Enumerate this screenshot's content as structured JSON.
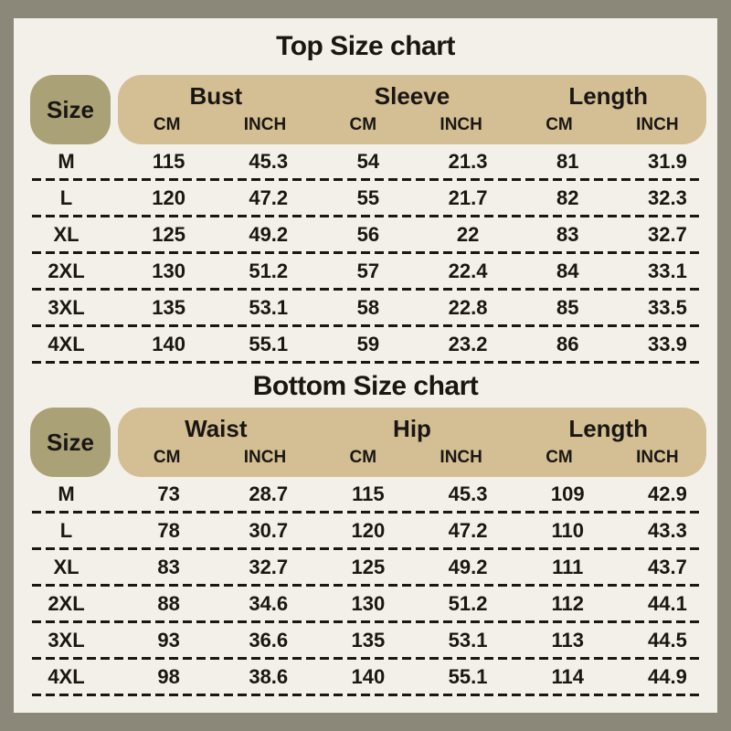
{
  "colors": {
    "frame": "#8b887a",
    "panel": "#f3f0e9",
    "header_band": "#d4be94",
    "size_pill": "#aba177",
    "text": "#1a1713"
  },
  "units": {
    "cm": "CM",
    "inch": "INCH"
  },
  "charts": {
    "top": {
      "title": "Top Size chart",
      "size_label": "Size",
      "groups": [
        "Bust",
        "Sleeve",
        "Length"
      ],
      "rows": [
        {
          "size": "M",
          "v": [
            "115",
            "45.3",
            "54",
            "21.3",
            "81",
            "31.9"
          ]
        },
        {
          "size": "L",
          "v": [
            "120",
            "47.2",
            "55",
            "21.7",
            "82",
            "32.3"
          ]
        },
        {
          "size": "XL",
          "v": [
            "125",
            "49.2",
            "56",
            "22",
            "83",
            "32.7"
          ]
        },
        {
          "size": "2XL",
          "v": [
            "130",
            "51.2",
            "57",
            "22.4",
            "84",
            "33.1"
          ]
        },
        {
          "size": "3XL",
          "v": [
            "135",
            "53.1",
            "58",
            "22.8",
            "85",
            "33.5"
          ]
        },
        {
          "size": "4XL",
          "v": [
            "140",
            "55.1",
            "59",
            "23.2",
            "86",
            "33.9"
          ]
        }
      ]
    },
    "bottom": {
      "title": "Bottom Size chart",
      "size_label": "Size",
      "groups": [
        "Waist",
        "Hip",
        "Length"
      ],
      "rows": [
        {
          "size": "M",
          "v": [
            "73",
            "28.7",
            "115",
            "45.3",
            "109",
            "42.9"
          ]
        },
        {
          "size": "L",
          "v": [
            "78",
            "30.7",
            "120",
            "47.2",
            "110",
            "43.3"
          ]
        },
        {
          "size": "XL",
          "v": [
            "83",
            "32.7",
            "125",
            "49.2",
            "111",
            "43.7"
          ]
        },
        {
          "size": "2XL",
          "v": [
            "88",
            "34.6",
            "130",
            "51.2",
            "112",
            "44.1"
          ]
        },
        {
          "size": "3XL",
          "v": [
            "93",
            "36.6",
            "135",
            "53.1",
            "113",
            "44.5"
          ]
        },
        {
          "size": "4XL",
          "v": [
            "98",
            "38.6",
            "140",
            "55.1",
            "114",
            "44.9"
          ]
        }
      ]
    }
  },
  "chart_data": [
    {
      "type": "table",
      "title": "Top Size chart",
      "columns": [
        "Size",
        "Bust CM",
        "Bust INCH",
        "Sleeve CM",
        "Sleeve INCH",
        "Length CM",
        "Length INCH"
      ],
      "rows": [
        [
          "M",
          115,
          45.3,
          54,
          21.3,
          81,
          31.9
        ],
        [
          "L",
          120,
          47.2,
          55,
          21.7,
          82,
          32.3
        ],
        [
          "XL",
          125,
          49.2,
          56,
          22,
          83,
          32.7
        ],
        [
          "2XL",
          130,
          51.2,
          57,
          22.4,
          84,
          33.1
        ],
        [
          "3XL",
          135,
          53.1,
          58,
          22.8,
          85,
          33.5
        ],
        [
          "4XL",
          140,
          55.1,
          59,
          23.2,
          86,
          33.9
        ]
      ]
    },
    {
      "type": "table",
      "title": "Bottom Size chart",
      "columns": [
        "Size",
        "Waist CM",
        "Waist INCH",
        "Hip CM",
        "Hip INCH",
        "Length CM",
        "Length INCH"
      ],
      "rows": [
        [
          "M",
          73,
          28.7,
          115,
          45.3,
          109,
          42.9
        ],
        [
          "L",
          78,
          30.7,
          120,
          47.2,
          110,
          43.3
        ],
        [
          "XL",
          83,
          32.7,
          125,
          49.2,
          111,
          43.7
        ],
        [
          "2XL",
          88,
          34.6,
          130,
          51.2,
          112,
          44.1
        ],
        [
          "3XL",
          93,
          36.6,
          135,
          53.1,
          113,
          44.5
        ],
        [
          "4XL",
          98,
          38.6,
          140,
          55.1,
          114,
          44.9
        ]
      ]
    }
  ]
}
